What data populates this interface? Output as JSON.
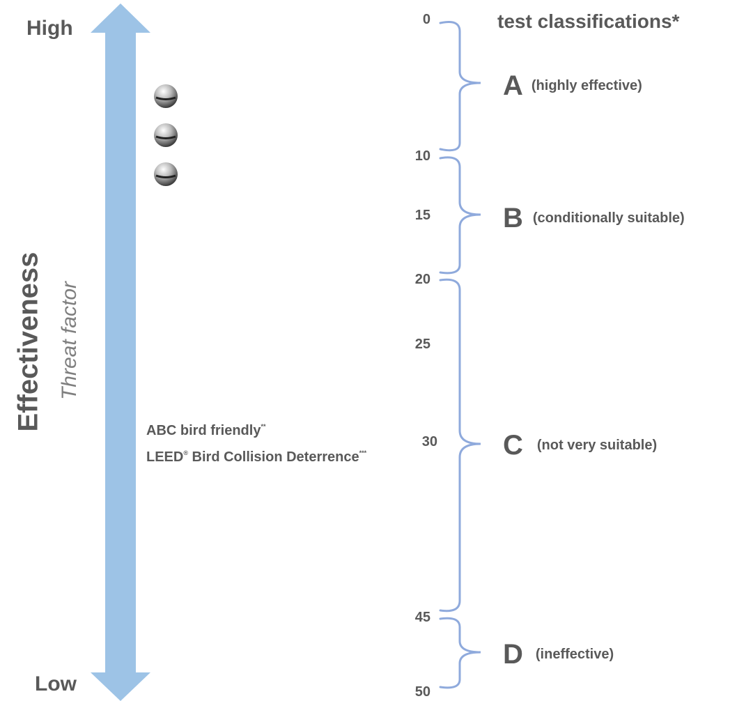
{
  "axis": {
    "high_label": "High",
    "low_label": "Low",
    "title": "Effectiveness",
    "subtitle": "Threat factor"
  },
  "scale": {
    "heading": "test classifications*",
    "ticks": [
      "0",
      "10",
      "15",
      "20",
      "25",
      "30",
      "45",
      "50"
    ]
  },
  "classes": [
    {
      "letter": "A",
      "desc": "(highly effective)"
    },
    {
      "letter": "B",
      "desc": "(conditionally suitable)"
    },
    {
      "letter": "C",
      "desc": "(not very suitable)"
    },
    {
      "letter": "D",
      "desc": "(ineffective)"
    }
  ],
  "annotations": {
    "abc": "ABC bird friendly",
    "abc_mark": "**",
    "leed": "LEED",
    "leed_reg": "®",
    "leed_rest": " Bird Collision Deterrence",
    "leed_mark": "***"
  },
  "colors": {
    "arrow": "#9DC3E6",
    "bracket": "#8FAADC",
    "text": "#595959",
    "subtitle": "#7F7F7F"
  }
}
